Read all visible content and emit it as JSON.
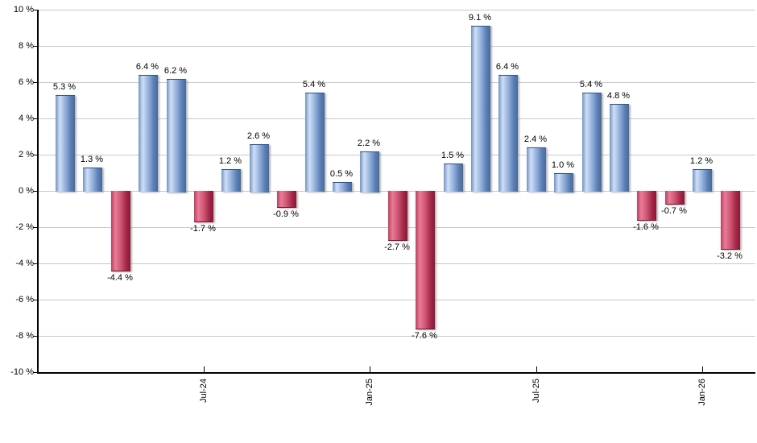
{
  "chart_data": {
    "type": "bar",
    "title": "",
    "description": "Monthly total returns bar chart, positive months blue, negative months red",
    "values": [
      5.3,
      1.3,
      -4.4,
      6.4,
      6.2,
      -1.7,
      1.2,
      2.6,
      -0.9,
      5.4,
      0.5,
      2.2,
      -2.7,
      -7.6,
      1.5,
      9.1,
      6.4,
      2.4,
      1.0,
      5.4,
      4.8,
      -1.6,
      -0.7,
      1.2,
      -3.2
    ],
    "value_labels": [
      "5.3 %",
      "1.3 %",
      "-4.4 %",
      "6.4 %",
      "6.2 %",
      "-1.7 %",
      "1.2 %",
      "2.6 %",
      "-0.9 %",
      "5.4 %",
      "0.5 %",
      "2.2 %",
      "-2.7 %",
      "-7.6 %",
      "1.5 %",
      "9.1 %",
      "6.4 %",
      "2.4 %",
      "1.0 %",
      "5.4 %",
      "4.8 %",
      "-1.6 %",
      "-0.7 %",
      "1.2 %",
      "-3.2 %"
    ],
    "xticks": [
      {
        "bar_index": 5,
        "label": "Jul-24"
      },
      {
        "bar_index": 11,
        "label": "Jan-25"
      },
      {
        "bar_index": 17,
        "label": "Jul-25"
      },
      {
        "bar_index": 23,
        "label": "Jan-26"
      }
    ],
    "yticks": [
      {
        "value": 10,
        "label": "10 %"
      },
      {
        "value": 8,
        "label": "8 %"
      },
      {
        "value": 6,
        "label": "6 %"
      },
      {
        "value": 4,
        "label": "4 %"
      },
      {
        "value": 2,
        "label": "2 %"
      },
      {
        "value": 0,
        "label": "0 %"
      },
      {
        "value": -2,
        "label": "-2 %"
      },
      {
        "value": -4,
        "label": "-4 %"
      },
      {
        "value": -6,
        "label": "-6 %"
      },
      {
        "value": -8,
        "label": "-8 %"
      },
      {
        "value": -10,
        "label": "-10 %"
      }
    ],
    "ylim": [
      -10,
      10
    ],
    "grid": true,
    "legend_position": "none",
    "colors": {
      "positive_gradient": [
        "#7293c4",
        "#cfdff6",
        "#94b2dd",
        "#5d80b4",
        "#47699d"
      ],
      "positive_stops_pct": [
        0,
        22,
        50,
        78,
        100
      ],
      "negative_gradient": [
        "#bd3f5f",
        "#ea7b97",
        "#ce5674",
        "#a42848",
        "#8a1736"
      ],
      "negative_stops_pct": [
        0,
        22,
        50,
        78,
        100
      ],
      "gridline": "#c9c9c9",
      "axis": "#000000",
      "text": "#000000"
    }
  }
}
